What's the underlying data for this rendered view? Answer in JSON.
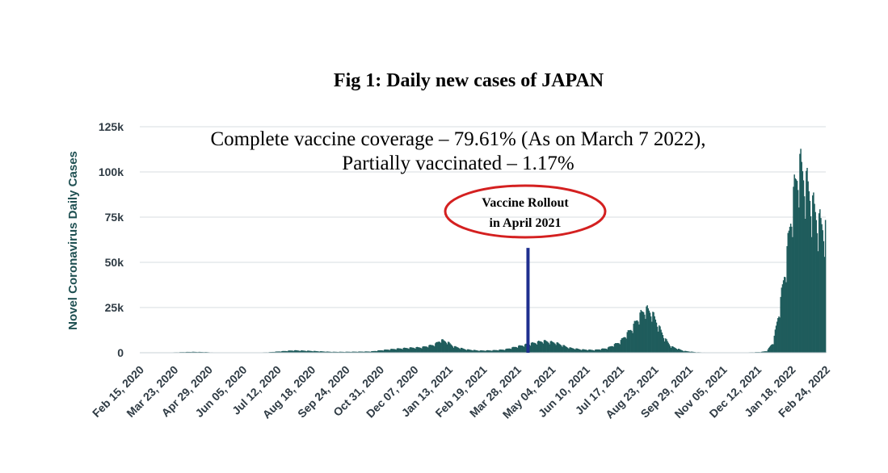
{
  "title": "Fig 1: Daily new cases of JAPAN",
  "annotation_line1": "Complete vaccine coverage – 79.61% (As on March 7 2022),",
  "annotation_line2": "Partially vaccinated – 1.17%",
  "callout_line1": "Vaccine Rollout",
  "callout_line2": "in April 2021",
  "colors": {
    "bars": "#1f5c5c",
    "marker": "#1f2f8f",
    "oval": "#d42020",
    "grid": "#d7dde2"
  },
  "chart_data": {
    "type": "bar",
    "ylabel": "Novel Coronavirus Daily Cases",
    "xlabel": "",
    "ylim": [
      0,
      125000
    ],
    "yticks": [
      0,
      25000,
      50000,
      75000,
      100000,
      125000
    ],
    "ytick_labels": [
      "0",
      "25k",
      "50k",
      "75k",
      "100k",
      "125k"
    ],
    "xtick_labels": [
      "Feb 15, 2020",
      "Mar 23, 2020",
      "Apr 29, 2020",
      "Jun 05, 2020",
      "Jul 12, 2020",
      "Aug 18, 2020",
      "Sep 24, 2020",
      "Oct 31, 2020",
      "Dec 07, 2020",
      "Jan 13, 2021",
      "Feb 19, 2021",
      "Mar 28, 2021",
      "May 04, 2021",
      "Jun 10, 2021",
      "Jul 17, 2021",
      "Aug 23, 2021",
      "Sep 29, 2021",
      "Nov 05, 2021",
      "Dec 12, 2021",
      "Jan 18, 2022",
      "Feb 24, 2022"
    ],
    "grid": true,
    "series": [
      {
        "name": "",
        "x": [
          "2020-02-15",
          "2020-02-29",
          "2020-03-14",
          "2020-03-28",
          "2020-04-11",
          "2020-04-25",
          "2020-05-09",
          "2020-05-23",
          "2020-06-06",
          "2020-06-20",
          "2020-07-04",
          "2020-07-18",
          "2020-08-01",
          "2020-08-15",
          "2020-08-29",
          "2020-09-12",
          "2020-09-26",
          "2020-10-10",
          "2020-10-24",
          "2020-11-07",
          "2020-11-21",
          "2020-12-05",
          "2020-12-19",
          "2021-01-02",
          "2021-01-09",
          "2021-01-16",
          "2021-01-23",
          "2021-02-06",
          "2021-02-20",
          "2021-03-06",
          "2021-03-20",
          "2021-04-03",
          "2021-04-17",
          "2021-05-01",
          "2021-05-15",
          "2021-05-29",
          "2021-06-12",
          "2021-06-26",
          "2021-07-10",
          "2021-07-24",
          "2021-08-07",
          "2021-08-14",
          "2021-08-21",
          "2021-08-28",
          "2021-09-04",
          "2021-09-11",
          "2021-09-18",
          "2021-10-02",
          "2021-10-16",
          "2021-10-30",
          "2021-11-13",
          "2021-11-27",
          "2021-12-11",
          "2021-12-25",
          "2022-01-01",
          "2022-01-08",
          "2022-01-15",
          "2022-01-22",
          "2022-01-29",
          "2022-02-05",
          "2022-02-12",
          "2022-02-19",
          "2022-02-26",
          "2022-03-05"
        ],
        "values": [
          20,
          40,
          100,
          300,
          500,
          400,
          100,
          40,
          50,
          100,
          300,
          800,
          1300,
          1100,
          800,
          500,
          500,
          600,
          700,
          1500,
          2200,
          2700,
          3000,
          4500,
          7000,
          6000,
          3500,
          1800,
          1200,
          1300,
          1800,
          3500,
          5000,
          6500,
          5500,
          2800,
          1800,
          1500,
          2500,
          6000,
          14000,
          20000,
          24000,
          22000,
          15000,
          8000,
          3500,
          1000,
          300,
          150,
          100,
          150,
          200,
          400,
          1000,
          6000,
          25000,
          50000,
          82000,
          103000,
          95000,
          82000,
          72000,
          68000
        ]
      }
    ],
    "marker": {
      "x": "2021-04-15",
      "value": 58000
    }
  }
}
